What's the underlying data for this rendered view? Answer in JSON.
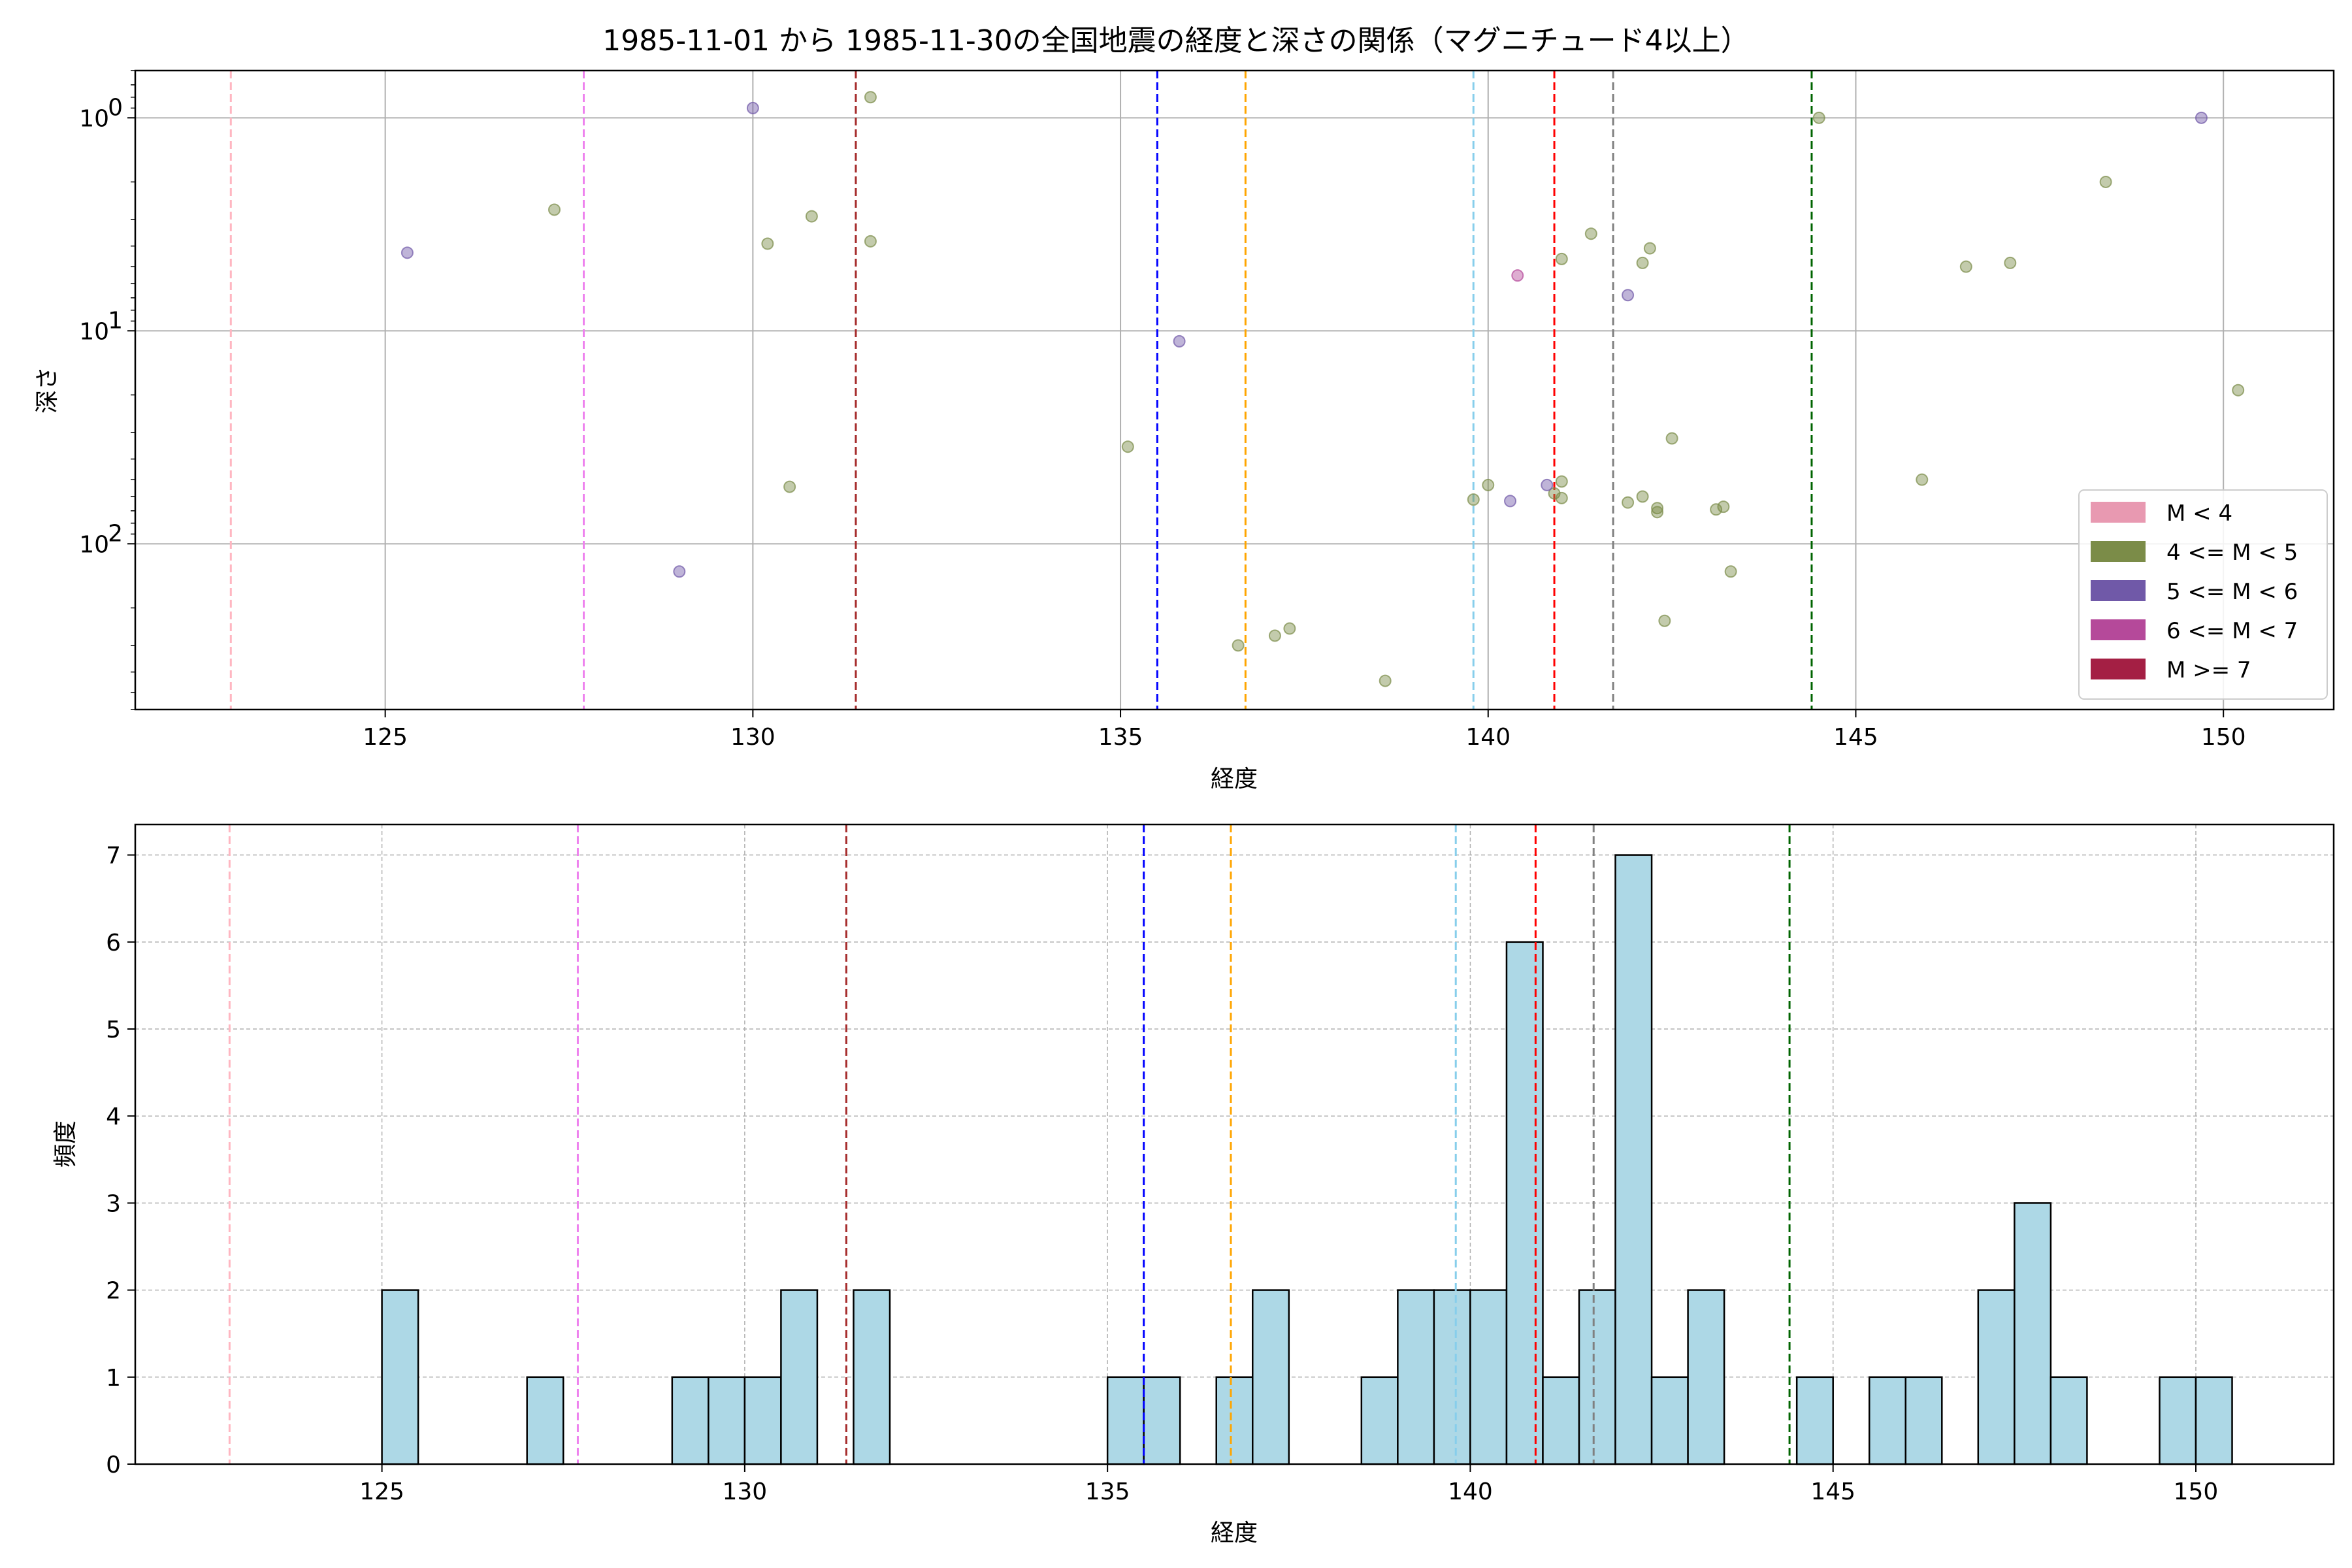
{
  "chart_data": [
    {
      "type": "scatter",
      "title": "1985-11-01 から 1985-11-30の全国地震の経度と深さの関係（マグニチュード4以上）",
      "xlabel": "経度",
      "ylabel": "深さ",
      "xlim": [
        121.6,
        151.5
      ],
      "ylim": [
        600,
        0.6
      ],
      "yscale": "log",
      "yaxis_inverted": true,
      "xticks": [
        "125",
        "130",
        "135",
        "140",
        "145",
        "150"
      ],
      "yticks": [
        {
          "value": 1,
          "label": "10^0",
          "base": "10",
          "exp": "0"
        },
        {
          "value": 10,
          "label": "10^1",
          "base": "10",
          "exp": "1"
        },
        {
          "value": 100,
          "label": "10^2",
          "base": "10",
          "exp": "2"
        }
      ],
      "grid": true,
      "legend": {
        "position": "lower-right",
        "entries": [
          {
            "label": "M < 4",
            "color": "#e899b1"
          },
          {
            "label": "4 <= M < 5",
            "color": "#7b8c48"
          },
          {
            "label": "5 <= M < 6",
            "color": "#7059a8"
          },
          {
            "label": "6 <= M < 7",
            "color": "#b5499a"
          },
          {
            "label": "M >= 7",
            "color": "#a41f44"
          }
        ]
      },
      "series": [
        {
          "name": "4 <= M < 5",
          "color": "#7b8c48",
          "points": [
            {
              "x": 127.3,
              "y": 2.7
            },
            {
              "x": 130.2,
              "y": 3.9
            },
            {
              "x": 130.8,
              "y": 2.9
            },
            {
              "x": 131.6,
              "y": 0.8
            },
            {
              "x": 131.6,
              "y": 3.8
            },
            {
              "x": 130.5,
              "y": 54
            },
            {
              "x": 135.1,
              "y": 35
            },
            {
              "x": 136.6,
              "y": 300
            },
            {
              "x": 137.1,
              "y": 270
            },
            {
              "x": 137.3,
              "y": 250
            },
            {
              "x": 138.6,
              "y": 440
            },
            {
              "x": 139.8,
              "y": 62
            },
            {
              "x": 140.0,
              "y": 53
            },
            {
              "x": 140.9,
              "y": 58
            },
            {
              "x": 141.0,
              "y": 61
            },
            {
              "x": 141.0,
              "y": 51
            },
            {
              "x": 141.0,
              "y": 4.6
            },
            {
              "x": 141.4,
              "y": 3.5
            },
            {
              "x": 141.9,
              "y": 64
            },
            {
              "x": 142.1,
              "y": 60
            },
            {
              "x": 142.1,
              "y": 4.8
            },
            {
              "x": 142.2,
              "y": 4.1
            },
            {
              "x": 142.3,
              "y": 68
            },
            {
              "x": 142.3,
              "y": 71
            },
            {
              "x": 142.4,
              "y": 230
            },
            {
              "x": 142.5,
              "y": 32
            },
            {
              "x": 143.1,
              "y": 69
            },
            {
              "x": 143.2,
              "y": 67
            },
            {
              "x": 143.3,
              "y": 135
            },
            {
              "x": 144.5,
              "y": 1.0
            },
            {
              "x": 145.9,
              "y": 50
            },
            {
              "x": 146.5,
              "y": 5.0
            },
            {
              "x": 147.1,
              "y": 4.8
            },
            {
              "x": 148.4,
              "y": 2.0
            },
            {
              "x": 150.2,
              "y": 19
            }
          ]
        },
        {
          "name": "5 <= M < 6",
          "color": "#7059a8",
          "points": [
            {
              "x": 125.3,
              "y": 4.3
            },
            {
              "x": 130.0,
              "y": 0.9
            },
            {
              "x": 129.0,
              "y": 135
            },
            {
              "x": 135.8,
              "y": 11.2
            },
            {
              "x": 140.3,
              "y": 63
            },
            {
              "x": 140.8,
              "y": 53
            },
            {
              "x": 141.9,
              "y": 6.8
            },
            {
              "x": 149.7,
              "y": 1.0
            }
          ]
        },
        {
          "name": "6 <= M < 7",
          "color": "#b5499a",
          "points": [
            {
              "x": 140.4,
              "y": 5.5
            }
          ]
        }
      ],
      "vlines": [
        {
          "x": 122.9,
          "color": "#ffb6c1"
        },
        {
          "x": 127.7,
          "color": "#ee82ee"
        },
        {
          "x": 131.4,
          "color": "#a52a2a"
        },
        {
          "x": 135.5,
          "color": "#0000ff"
        },
        {
          "x": 136.7,
          "color": "#ffa500"
        },
        {
          "x": 139.8,
          "color": "#87ceeb"
        },
        {
          "x": 140.9,
          "color": "#ff0000"
        },
        {
          "x": 141.7,
          "color": "#808080"
        },
        {
          "x": 144.4,
          "color": "#006400"
        }
      ]
    },
    {
      "type": "bar",
      "xlabel": "経度",
      "ylabel": "頻度",
      "xlim": [
        121.6,
        151.9
      ],
      "ylim": [
        0,
        7.35
      ],
      "xticks": [
        "125",
        "130",
        "135",
        "140",
        "145",
        "150"
      ],
      "yticks": [
        "0",
        "1",
        "2",
        "3",
        "4",
        "5",
        "6",
        "7"
      ],
      "grid": true,
      "bar_color": "#add8e6",
      "bin_width": 0.5,
      "bins": [
        {
          "x": 125.0,
          "count": 2
        },
        {
          "x": 127.0,
          "count": 1
        },
        {
          "x": 129.0,
          "count": 1
        },
        {
          "x": 129.5,
          "count": 1
        },
        {
          "x": 130.0,
          "count": 1
        },
        {
          "x": 130.5,
          "count": 2
        },
        {
          "x": 131.5,
          "count": 2
        },
        {
          "x": 135.0,
          "count": 1
        },
        {
          "x": 135.5,
          "count": 1
        },
        {
          "x": 136.5,
          "count": 1
        },
        {
          "x": 137.0,
          "count": 2
        },
        {
          "x": 138.5,
          "count": 1
        },
        {
          "x": 139.0,
          "count": 2
        },
        {
          "x": 139.5,
          "count": 2
        },
        {
          "x": 140.0,
          "count": 2
        },
        {
          "x": 140.5,
          "count": 6
        },
        {
          "x": 141.0,
          "count": 1
        },
        {
          "x": 141.5,
          "count": 2
        },
        {
          "x": 142.0,
          "count": 7
        },
        {
          "x": 142.5,
          "count": 1
        },
        {
          "x": 143.0,
          "count": 2
        },
        {
          "x": 144.5,
          "count": 1
        },
        {
          "x": 145.5,
          "count": 1
        },
        {
          "x": 146.0,
          "count": 1
        },
        {
          "x": 147.0,
          "count": 2
        },
        {
          "x": 147.5,
          "count": 3
        },
        {
          "x": 148.0,
          "count": 1
        },
        {
          "x": 149.5,
          "count": 1
        },
        {
          "x": 150.0,
          "count": 1
        }
      ],
      "vlines": [
        {
          "x": 122.9,
          "color": "#ffb6c1"
        },
        {
          "x": 127.7,
          "color": "#ee82ee"
        },
        {
          "x": 131.4,
          "color": "#a52a2a"
        },
        {
          "x": 135.5,
          "color": "#0000ff"
        },
        {
          "x": 136.7,
          "color": "#ffa500"
        },
        {
          "x": 139.8,
          "color": "#87ceeb"
        },
        {
          "x": 140.9,
          "color": "#ff0000"
        },
        {
          "x": 141.7,
          "color": "#808080"
        },
        {
          "x": 144.4,
          "color": "#006400"
        }
      ]
    }
  ]
}
